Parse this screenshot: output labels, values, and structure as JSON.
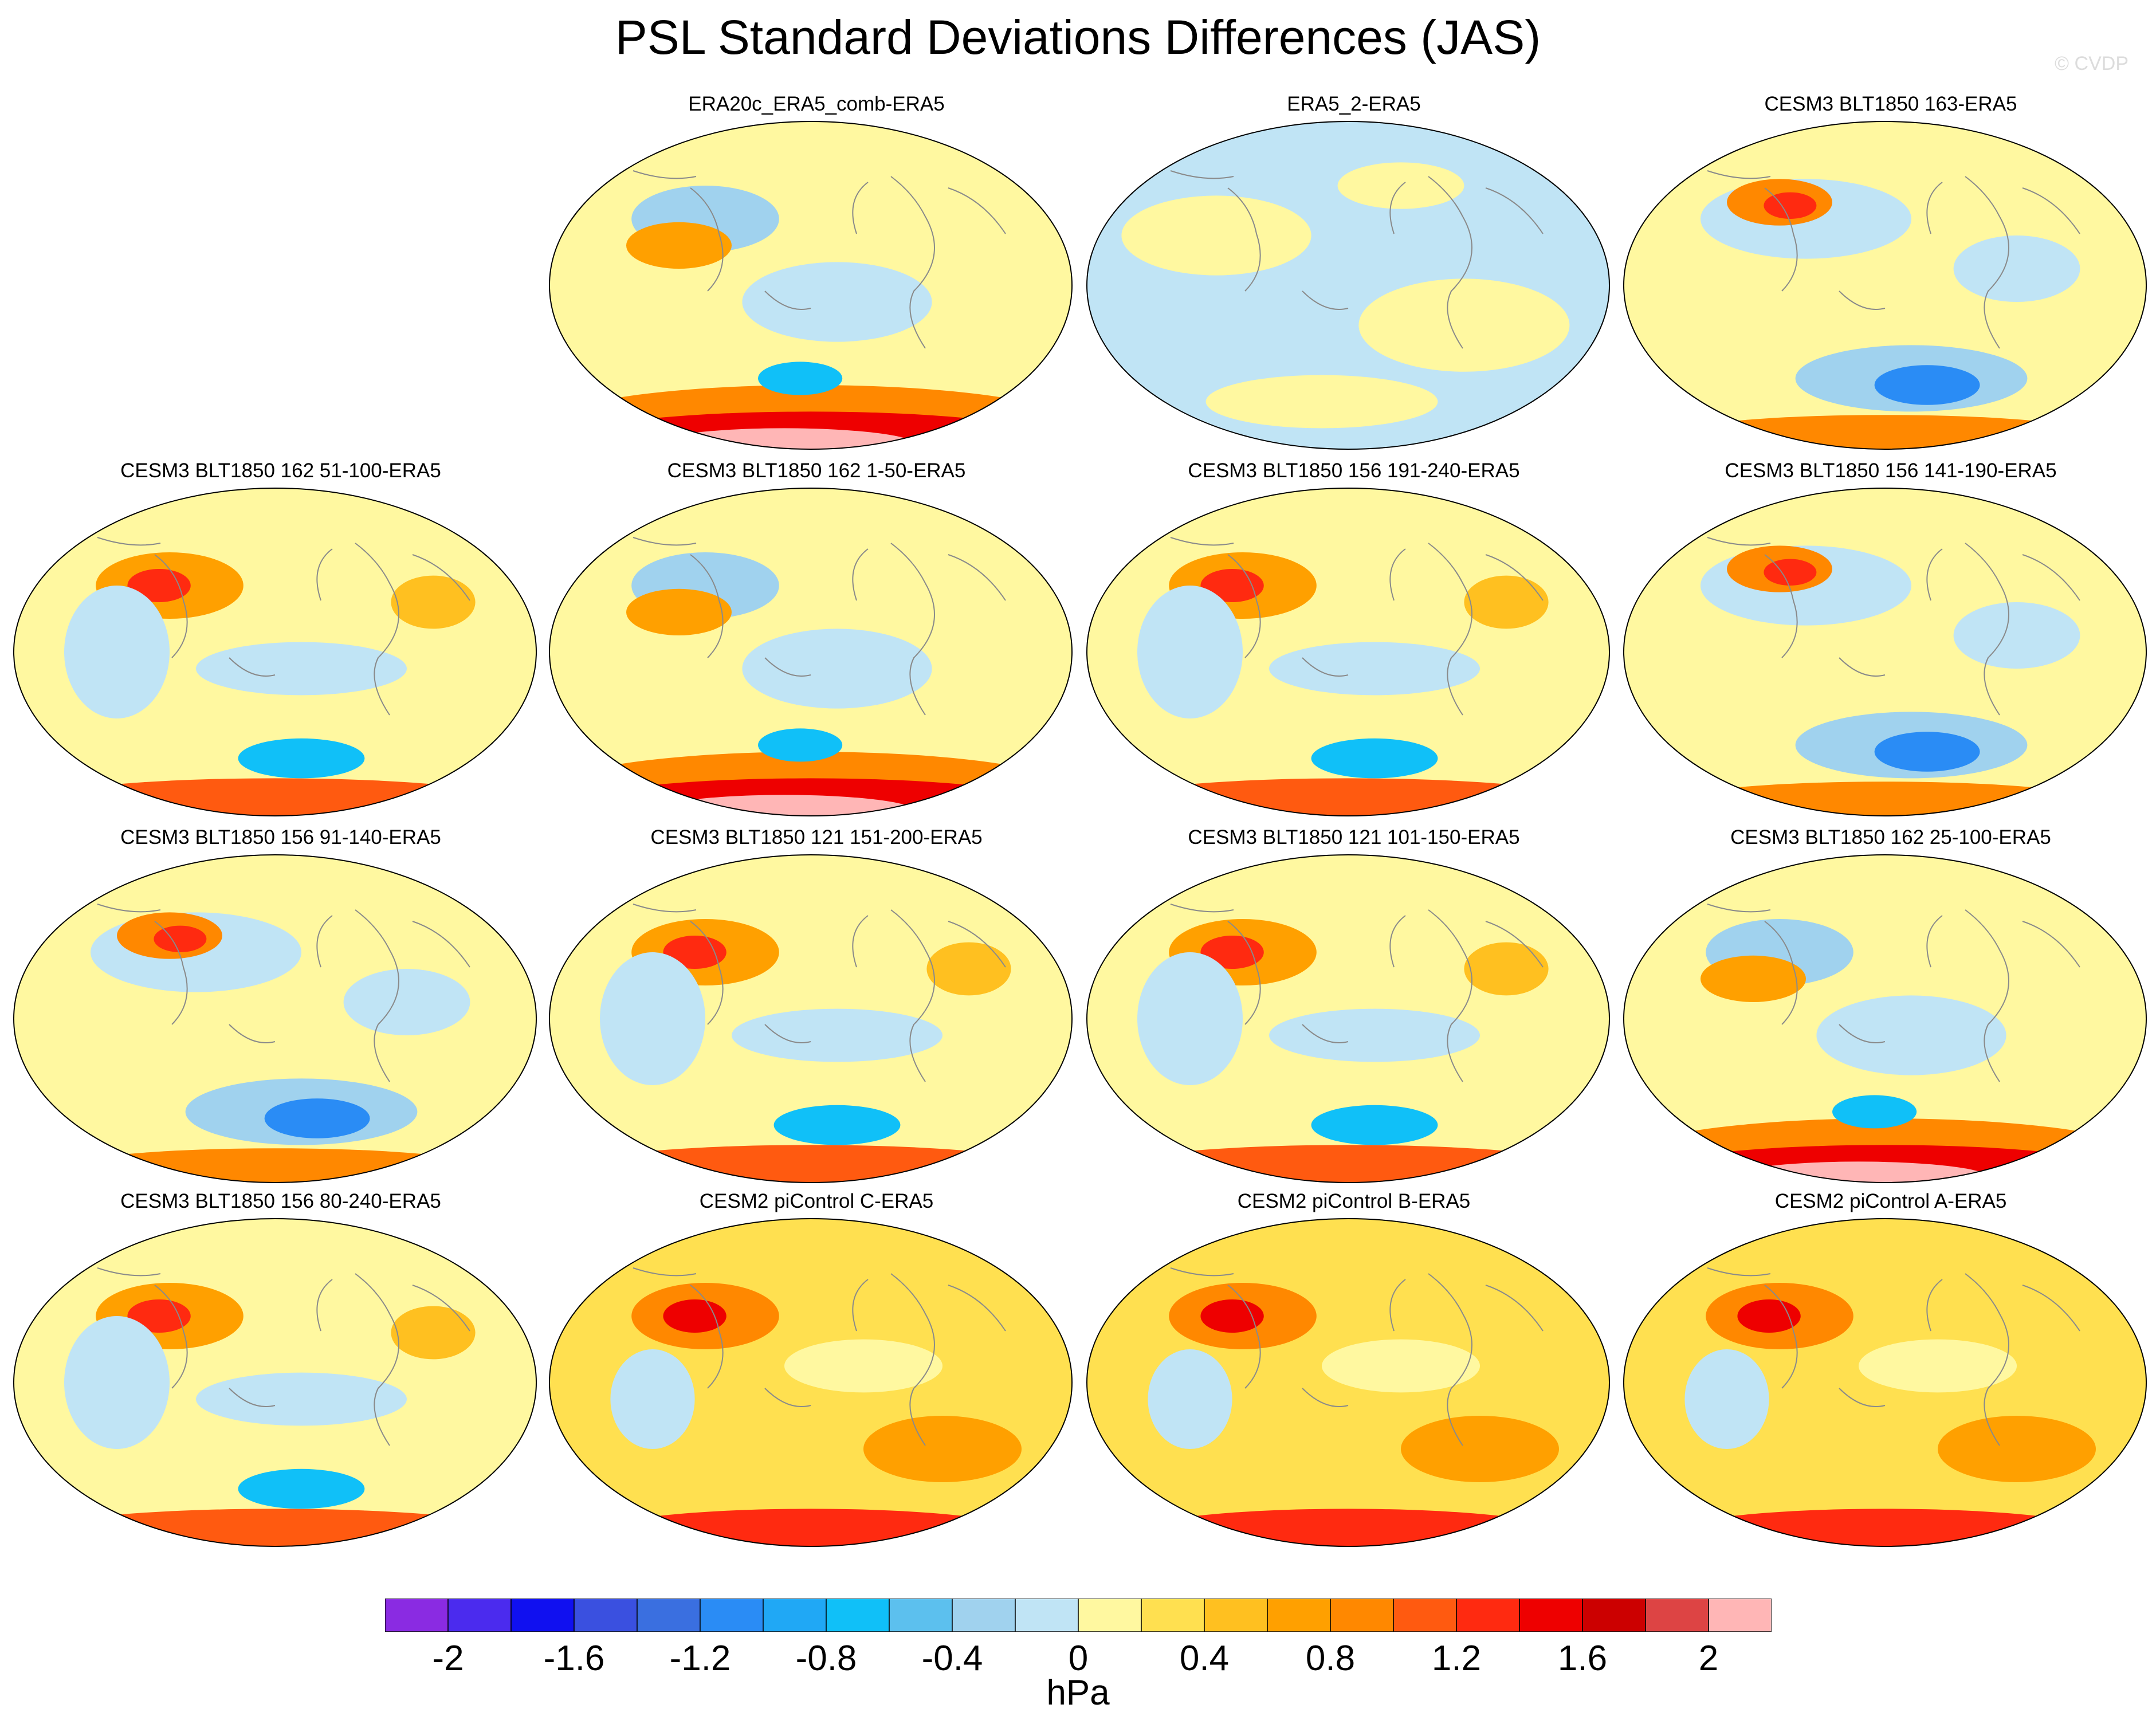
{
  "title": "PSL Standard Deviations Differences (JAS)",
  "watermark": "© CVDP",
  "panels": [
    {
      "id": "p1",
      "label": "ERA20c_ERA5_comb-ERA5",
      "pattern": "strongSouth"
    },
    {
      "id": "p2",
      "label": "ERA5_2-ERA5",
      "pattern": "neutral"
    },
    {
      "id": "p3",
      "label": "CESM3 BLT1850 163-ERA5",
      "pattern": "blueSouth"
    },
    {
      "id": "p4",
      "label": "CESM3 BLT1850 162 51-100-ERA5",
      "pattern": "mixed"
    },
    {
      "id": "p5",
      "label": "CESM3 BLT1850 162 1-50-ERA5",
      "pattern": "strongSouth"
    },
    {
      "id": "p6",
      "label": "CESM3 BLT1850 156 191-240-ERA5",
      "pattern": "mixed"
    },
    {
      "id": "p7",
      "label": "CESM3 BLT1850 156 141-190-ERA5",
      "pattern": "blueSouth"
    },
    {
      "id": "p8",
      "label": "CESM3 BLT1850 156 91-140-ERA5",
      "pattern": "blueSouth"
    },
    {
      "id": "p9",
      "label": "CESM3 BLT1850 121 151-200-ERA5",
      "pattern": "mixed"
    },
    {
      "id": "p10",
      "label": "CESM3 BLT1850 121 101-150-ERA5",
      "pattern": "mixed"
    },
    {
      "id": "p11",
      "label": "CESM3 BLT1850 162 25-100-ERA5",
      "pattern": "strongSouth"
    },
    {
      "id": "p12",
      "label": "CESM3 BLT1850 156 80-240-ERA5",
      "pattern": "mixed"
    },
    {
      "id": "p13",
      "label": "CESM2 piControl C-ERA5",
      "pattern": "warm"
    },
    {
      "id": "p14",
      "label": "CESM2 piControl B-ERA5",
      "pattern": "warm"
    },
    {
      "id": "p15",
      "label": "CESM2 piControl A-ERA5",
      "pattern": "warm"
    }
  ],
  "colorbar": {
    "units": "hPa",
    "colors": [
      "#8a2be2",
      "#4b2bee",
      "#1010f0",
      "#3a50e0",
      "#3a6fe0",
      "#2a8cf5",
      "#20a8f5",
      "#10c0f8",
      "#5cc0ee",
      "#a0d2ee",
      "#c0e4f5",
      "#fff8a0",
      "#ffe050",
      "#ffc020",
      "#ffa000",
      "#ff8800",
      "#ff5a10",
      "#ff2a10",
      "#ee0000",
      "#cc0000",
      "#dd4444",
      "#ffb6b6"
    ],
    "ticks": [
      "-2",
      "-1.6",
      "-1.2",
      "-0.8",
      "-0.4",
      "0",
      "0.4",
      "0.8",
      "1.2",
      "1.6",
      "2"
    ],
    "tick_values": [
      -2,
      -1.6,
      -1.2,
      -0.8,
      -0.4,
      0,
      0.4,
      0.8,
      1.2,
      1.6,
      2
    ]
  }
}
